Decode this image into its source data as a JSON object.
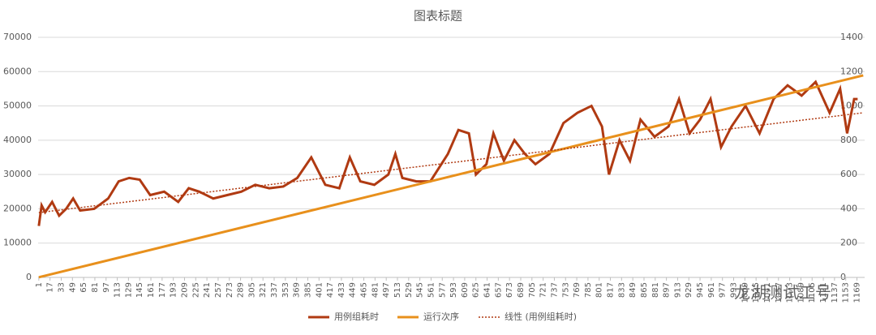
{
  "chart_data": {
    "type": "line",
    "title": "图表标题",
    "watermark": "龙湖测试工号",
    "xlim": [
      0,
      1180
    ],
    "xticks": [
      1,
      17,
      33,
      49,
      65,
      81,
      97,
      113,
      129,
      145,
      161,
      177,
      193,
      209,
      225,
      241,
      257,
      273,
      289,
      305,
      321,
      337,
      353,
      369,
      385,
      401,
      417,
      433,
      449,
      465,
      481,
      497,
      513,
      529,
      545,
      561,
      577,
      593,
      609,
      625,
      641,
      657,
      673,
      689,
      705,
      721,
      737,
      753,
      769,
      785,
      801,
      817,
      833,
      849,
      865,
      881,
      897,
      913,
      929,
      945,
      961,
      977,
      993,
      1009,
      1025,
      1041,
      1057,
      1073,
      1089,
      1105,
      1121,
      1137,
      1153,
      1169
    ],
    "ylim": [
      0,
      70000
    ],
    "yticks": [
      0,
      10000,
      20000,
      30000,
      40000,
      50000,
      60000,
      70000
    ],
    "y2lim": [
      0,
      1400
    ],
    "y2ticks": [
      0,
      200,
      400,
      600,
      800,
      1000,
      1200,
      1400
    ],
    "grid": true,
    "legend": "bottom",
    "series": [
      {
        "name": "用例组耗时",
        "color": "#b03a12",
        "style": "solid",
        "x": [
          1,
          5,
          10,
          20,
          30,
          40,
          50,
          60,
          80,
          100,
          115,
          130,
          145,
          160,
          180,
          200,
          215,
          230,
          250,
          270,
          290,
          310,
          330,
          350,
          370,
          390,
          400,
          410,
          430,
          445,
          460,
          480,
          500,
          510,
          520,
          540,
          560,
          585,
          600,
          615,
          625,
          640,
          650,
          665,
          680,
          695,
          710,
          730,
          750,
          770,
          790,
          805,
          815,
          830,
          845,
          860,
          880,
          900,
          915,
          930,
          945,
          960,
          975,
          990,
          1010,
          1030,
          1050,
          1070,
          1090,
          1110,
          1130,
          1145,
          1155,
          1165,
          1170
        ],
        "values": [
          15000,
          21000,
          19000,
          22000,
          18000,
          20000,
          23000,
          19500,
          20000,
          23000,
          28000,
          29000,
          28500,
          24000,
          25000,
          22000,
          26000,
          25000,
          23000,
          24000,
          25000,
          27000,
          26000,
          26500,
          29000,
          35000,
          31000,
          27000,
          26000,
          35000,
          28000,
          27000,
          30000,
          36000,
          29000,
          28000,
          28000,
          36000,
          43000,
          42000,
          30000,
          33000,
          42000,
          34000,
          40000,
          36000,
          33000,
          36000,
          45000,
          48000,
          50000,
          44000,
          30000,
          40000,
          34000,
          46000,
          41000,
          44000,
          52000,
          42000,
          46000,
          52000,
          38000,
          44000,
          50000,
          42000,
          52000,
          56000,
          53000,
          57000,
          48000,
          55000,
          42000,
          52000,
          52000
        ]
      },
      {
        "name": "运行次序",
        "color": "#e8901c",
        "style": "solid",
        "axis": "y2",
        "x": [
          1,
          1178
        ],
        "values": [
          1,
          1178
        ]
      },
      {
        "name": "线性 (用例组耗时)",
        "color": "#b03a12",
        "style": "dotted",
        "x": [
          1,
          1178
        ],
        "values": [
          18900,
          48000
        ]
      }
    ]
  }
}
